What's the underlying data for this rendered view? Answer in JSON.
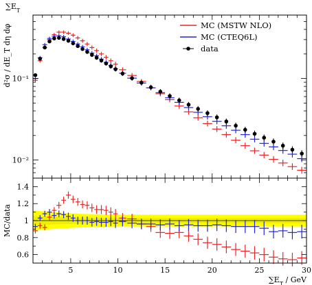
{
  "chart_data": [
    {
      "type": "scatter",
      "title": "∑E_T",
      "ylabel": "d²σ / dE_T dη dφ",
      "xlim": [
        1,
        30
      ],
      "ylim": [
        0.006,
        0.6
      ],
      "yscale": "log",
      "yticks": [
        {
          "value": 0.01,
          "label": "10⁻²"
        },
        {
          "value": 0.1,
          "label": "10⁻¹"
        }
      ],
      "legend_position": "top-right",
      "series": [
        {
          "name": "MC (MSTW NLO)",
          "color": "#ee2222",
          "style": "cross",
          "x": [
            1.25,
            1.75,
            2.25,
            2.75,
            3.25,
            3.75,
            4.25,
            4.75,
            5.25,
            5.75,
            6.25,
            6.75,
            7.25,
            7.75,
            8.25,
            8.75,
            9.25,
            9.75,
            10.5,
            11.5,
            12.5,
            13.5,
            14.5,
            15.5,
            16.5,
            17.5,
            18.5,
            19.5,
            20.5,
            21.5,
            22.5,
            23.5,
            24.5,
            25.5,
            26.5,
            27.5,
            28.5,
            29.5
          ],
          "y": [
            0.095,
            0.165,
            0.24,
            0.3,
            0.345,
            0.37,
            0.37,
            0.36,
            0.34,
            0.315,
            0.29,
            0.265,
            0.24,
            0.22,
            0.2,
            0.182,
            0.165,
            0.15,
            0.128,
            0.109,
            0.092,
            0.077,
            0.065,
            0.055,
            0.046,
            0.039,
            0.033,
            0.028,
            0.024,
            0.0205,
            0.0175,
            0.015,
            0.013,
            0.0115,
            0.0102,
            0.0092,
            0.0083,
            0.0075
          ]
        },
        {
          "name": "MC (CTEQ6L)",
          "color": "#2222dd",
          "style": "cross",
          "x": [
            1.25,
            1.75,
            2.25,
            2.75,
            3.25,
            3.75,
            4.25,
            4.75,
            5.25,
            5.75,
            6.25,
            6.75,
            7.25,
            7.75,
            8.25,
            8.75,
            9.25,
            9.75,
            10.5,
            11.5,
            12.5,
            13.5,
            14.5,
            15.5,
            16.5,
            17.5,
            18.5,
            19.5,
            20.5,
            21.5,
            22.5,
            23.5,
            24.5,
            25.5,
            26.5,
            27.5,
            28.5,
            29.5
          ],
          "y": [
            0.1,
            0.18,
            0.26,
            0.31,
            0.33,
            0.335,
            0.325,
            0.305,
            0.285,
            0.265,
            0.245,
            0.225,
            0.205,
            0.19,
            0.173,
            0.158,
            0.145,
            0.132,
            0.116,
            0.101,
            0.088,
            0.077,
            0.067,
            0.058,
            0.051,
            0.044,
            0.0385,
            0.034,
            0.0298,
            0.0263,
            0.0232,
            0.0205,
            0.018,
            0.016,
            0.0145,
            0.0131,
            0.0118,
            0.0104
          ]
        },
        {
          "name": "data",
          "color": "#000000",
          "style": "point",
          "x": [
            1.25,
            1.75,
            2.25,
            2.75,
            3.25,
            3.75,
            4.25,
            4.75,
            5.25,
            5.75,
            6.25,
            6.75,
            7.25,
            7.75,
            8.25,
            8.75,
            9.25,
            9.75,
            10.5,
            11.5,
            12.5,
            13.5,
            14.5,
            15.5,
            16.5,
            17.5,
            18.5,
            19.5,
            20.5,
            21.5,
            22.5,
            23.5,
            24.5,
            25.5,
            26.5,
            27.5,
            28.5,
            29.5
          ],
          "y": [
            0.11,
            0.175,
            0.24,
            0.285,
            0.31,
            0.315,
            0.305,
            0.29,
            0.27,
            0.25,
            0.23,
            0.212,
            0.195,
            0.18,
            0.166,
            0.153,
            0.141,
            0.13,
            0.115,
            0.101,
            0.089,
            0.078,
            0.069,
            0.061,
            0.054,
            0.0478,
            0.0424,
            0.0376,
            0.0334,
            0.0297,
            0.0264,
            0.0235,
            0.021,
            0.0188,
            0.0168,
            0.015,
            0.0134,
            0.012
          ]
        }
      ]
    },
    {
      "type": "scatter",
      "xlabel": "∑E_T / GeV",
      "ylabel": "MC/data",
      "xlim": [
        1,
        30
      ],
      "ylim": [
        0.5,
        1.5
      ],
      "xticks": [
        5,
        10,
        15,
        20,
        25,
        30
      ],
      "yticks": [
        {
          "value": 0.6,
          "label": "0.6"
        },
        {
          "value": 0.8,
          "label": "0.8"
        },
        {
          "value": 1.0,
          "label": "1"
        },
        {
          "value": 1.2,
          "label": "1.2"
        },
        {
          "value": 1.4,
          "label": "1.4"
        }
      ],
      "band": {
        "color": "#ffff00",
        "inner_color": "#eeee00",
        "x": [
          1,
          3,
          6,
          10,
          15,
          20,
          25,
          30
        ],
        "low": [
          0.88,
          0.9,
          0.92,
          0.93,
          0.93,
          0.93,
          0.93,
          0.93
        ],
        "high": [
          1.12,
          1.1,
          1.08,
          1.07,
          1.07,
          1.07,
          1.07,
          1.07
        ]
      },
      "series": [
        {
          "name": "MC (MSTW NLO)",
          "color": "#ee2222",
          "style": "cross",
          "x": [
            1.25,
            1.75,
            2.25,
            2.75,
            3.25,
            3.75,
            4.25,
            4.75,
            5.25,
            5.75,
            6.25,
            6.75,
            7.25,
            7.75,
            8.25,
            8.75,
            9.25,
            9.75,
            10.5,
            11.5,
            12.5,
            13.5,
            14.5,
            15.5,
            16.5,
            17.5,
            18.5,
            19.5,
            20.5,
            21.5,
            22.5,
            23.5,
            24.5,
            25.5,
            26.5,
            27.5,
            28.5,
            29.5
          ],
          "y": [
            0.88,
            0.94,
            0.92,
            1.04,
            1.12,
            1.18,
            1.24,
            1.3,
            1.25,
            1.22,
            1.19,
            1.18,
            1.15,
            1.13,
            1.13,
            1.12,
            1.1,
            1.08,
            1.03,
            1.02,
            0.96,
            0.93,
            0.86,
            0.85,
            0.86,
            0.82,
            0.78,
            0.74,
            0.72,
            0.69,
            0.66,
            0.64,
            0.62,
            0.6,
            0.57,
            0.55,
            0.54,
            0.56
          ]
        },
        {
          "name": "MC (CTEQ6L)",
          "color": "#2222dd",
          "style": "cross",
          "x": [
            1.25,
            1.75,
            2.25,
            2.75,
            3.25,
            3.75,
            4.25,
            4.75,
            5.25,
            5.75,
            6.25,
            6.75,
            7.25,
            7.75,
            8.25,
            8.75,
            9.25,
            9.75,
            10.5,
            11.5,
            12.5,
            13.5,
            14.5,
            15.5,
            16.5,
            17.5,
            18.5,
            19.5,
            20.5,
            21.5,
            22.5,
            23.5,
            24.5,
            25.5,
            26.5,
            27.5,
            28.5,
            29.5
          ],
          "y": [
            0.93,
            1.03,
            1.08,
            1.1,
            1.06,
            1.08,
            1.07,
            1.05,
            1.03,
            1.0,
            1.0,
            1.0,
            0.98,
            0.99,
            0.98,
            0.98,
            0.99,
            0.97,
            0.99,
            0.97,
            0.96,
            0.96,
            0.95,
            0.96,
            0.94,
            0.95,
            0.94,
            0.94,
            0.95,
            0.94,
            0.93,
            0.93,
            0.93,
            0.91,
            0.87,
            0.88,
            0.86,
            0.87
          ]
        }
      ]
    }
  ]
}
